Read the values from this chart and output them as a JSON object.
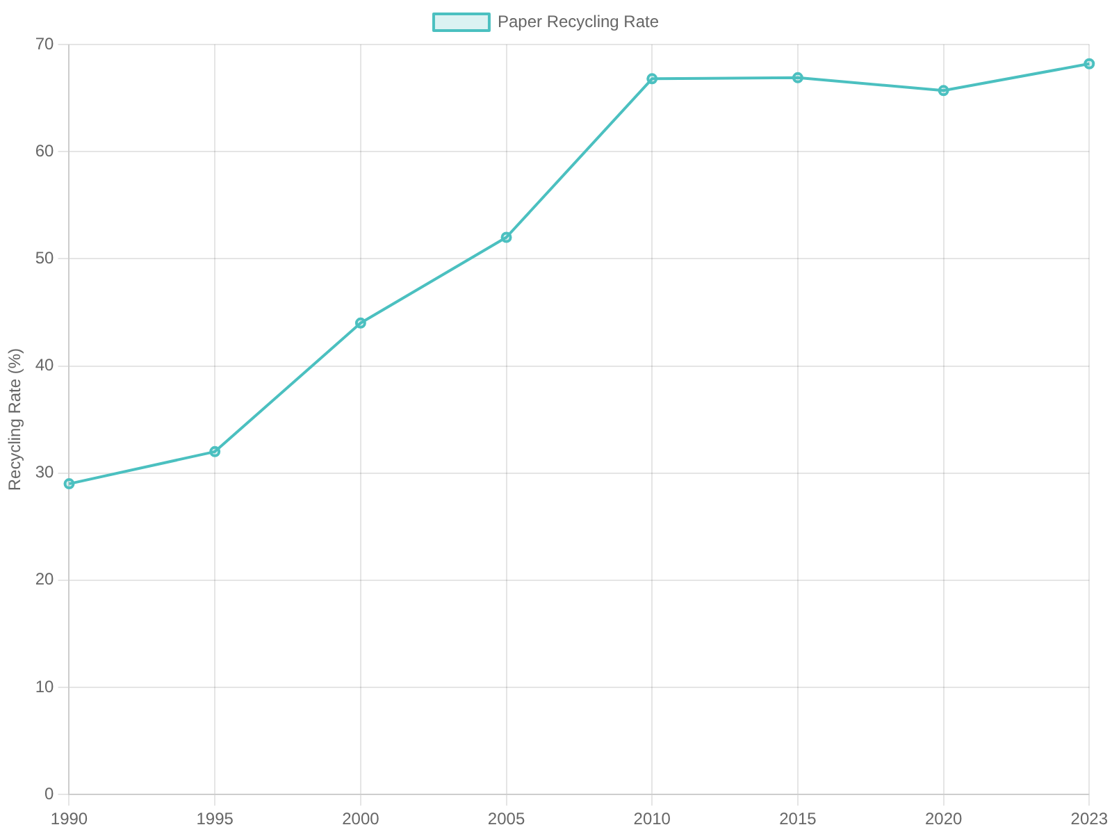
{
  "chart_data": {
    "type": "line",
    "categories": [
      "1990",
      "1995",
      "2000",
      "2005",
      "2010",
      "2015",
      "2020",
      "2023"
    ],
    "series": [
      {
        "name": "Paper Recycling Rate",
        "color": "#4bc0c0",
        "values": [
          29,
          32,
          44,
          52,
          66.8,
          66.9,
          65.7,
          68.2
        ]
      }
    ],
    "ylabel": "Recycling Rate (%)",
    "ylim": [
      0,
      70
    ],
    "yticks": [
      0,
      10,
      20,
      30,
      40,
      50,
      60,
      70
    ],
    "grid": true,
    "legend": "top",
    "marker": "circle"
  }
}
